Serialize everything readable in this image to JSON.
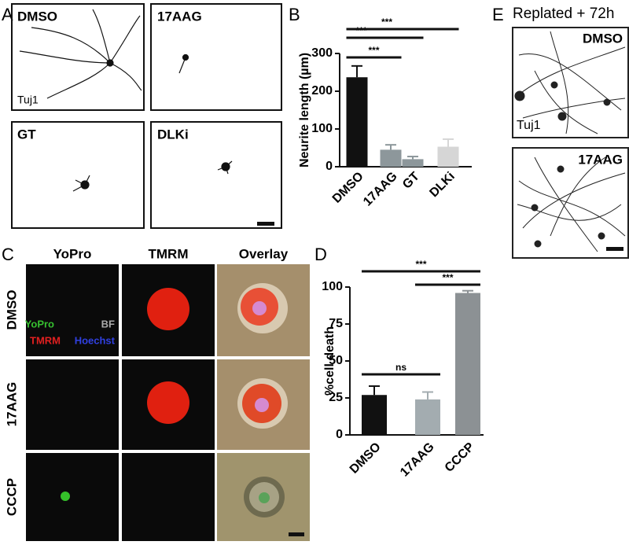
{
  "figure": {
    "a": {
      "label": "A",
      "images": [
        {
          "label": "DMSO",
          "stain": "Tuj1"
        },
        {
          "label": "17AAG"
        },
        {
          "label": "GT"
        },
        {
          "label": "DLKi"
        }
      ]
    },
    "c": {
      "label": "C",
      "columns": [
        "YoPro",
        "TMRM",
        "Overlay"
      ],
      "rows": [
        "DMSO",
        "17AAG",
        "CCCP"
      ],
      "legend": {
        "yopro": "YoPro",
        "bf": "BF",
        "tmrm": "TMRM",
        "hoechst": "Hoechst"
      }
    },
    "e": {
      "label": "E",
      "title": "Replated + 72h",
      "images": [
        {
          "label": "DMSO",
          "stain": "Tuj1"
        },
        {
          "label": "17AAG"
        }
      ]
    }
  },
  "chart_data": [
    {
      "type": "bar",
      "panel": "B",
      "ylabel": "Neurite length (µm)",
      "categories": [
        "DMSO",
        "17AAG",
        "GT",
        "DLKi"
      ],
      "values": [
        237,
        45,
        20,
        53
      ],
      "errors": [
        30,
        13,
        7,
        20
      ],
      "colors": [
        "#111111",
        "#8d979b",
        "#8d979b",
        "#d6d6d6"
      ],
      "ylim": [
        0,
        300
      ],
      "yticks": [
        0,
        100,
        200,
        300
      ],
      "annotations": [
        "***",
        "***",
        "***"
      ]
    },
    {
      "type": "bar",
      "panel": "D",
      "ylabel": "%cell death",
      "categories": [
        "DMSO",
        "17AAG",
        "CCCP"
      ],
      "values": [
        27,
        24,
        96
      ],
      "errors": [
        6,
        5,
        1.5
      ],
      "colors": [
        "#111111",
        "#a3acb0",
        "#8c9194"
      ],
      "ylim": [
        0,
        100
      ],
      "yticks": [
        0,
        25,
        50,
        75,
        100
      ],
      "annotations": [
        "ns",
        "***",
        "***"
      ]
    }
  ]
}
